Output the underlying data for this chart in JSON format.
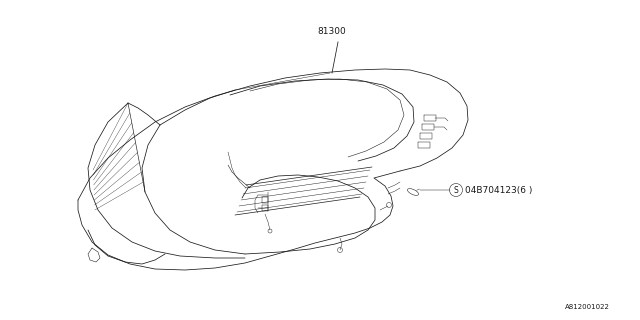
{
  "background_color": "#ffffff",
  "line_color": "#1a1a1a",
  "label_81300": "81300",
  "label_part": "04B704123(6 )",
  "label_s": "S",
  "diagram_id": "A812001022",
  "fig_width": 6.4,
  "fig_height": 3.2,
  "dpi": 100
}
